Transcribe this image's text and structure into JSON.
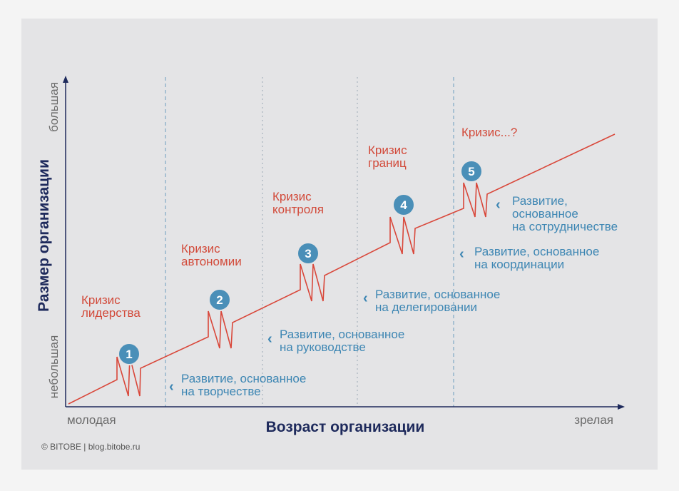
{
  "axes": {
    "y_title": "Размер организации",
    "y_low": "небольшая",
    "y_high": "большая",
    "x_title": "Возраст организации",
    "x_low": "молодая",
    "x_high": "зрелая"
  },
  "phases": [
    {
      "number": "1",
      "crisis": [
        "Кризис",
        "лидерства"
      ],
      "development": [
        "Развитие, основанное",
        "на творчестве"
      ]
    },
    {
      "number": "2",
      "crisis": [
        "Кризис",
        "автономии"
      ],
      "development": [
        "Развитие, основанное",
        "на руководстве"
      ]
    },
    {
      "number": "3",
      "crisis": [
        "Кризис",
        "контроля"
      ],
      "development": [
        "Развитие, основанное",
        "на делегировании"
      ]
    },
    {
      "number": "4",
      "crisis": [
        "Кризис",
        "границ"
      ],
      "development": [
        "Развитие, основанное",
        "на координации"
      ]
    },
    {
      "number": "5",
      "crisis": [
        "Кризис...?"
      ],
      "development": [
        "Развитие,",
        "основанное",
        "на сотрудничестве"
      ]
    }
  ],
  "chevron": "‹",
  "credit": "© BITOBE  |  blog.bitobe.ru",
  "colors": {
    "growth_line": "#d9473a",
    "badge": "#4a8fb8",
    "axis": "#1e2a5c",
    "divider": "#6a9bbd"
  }
}
